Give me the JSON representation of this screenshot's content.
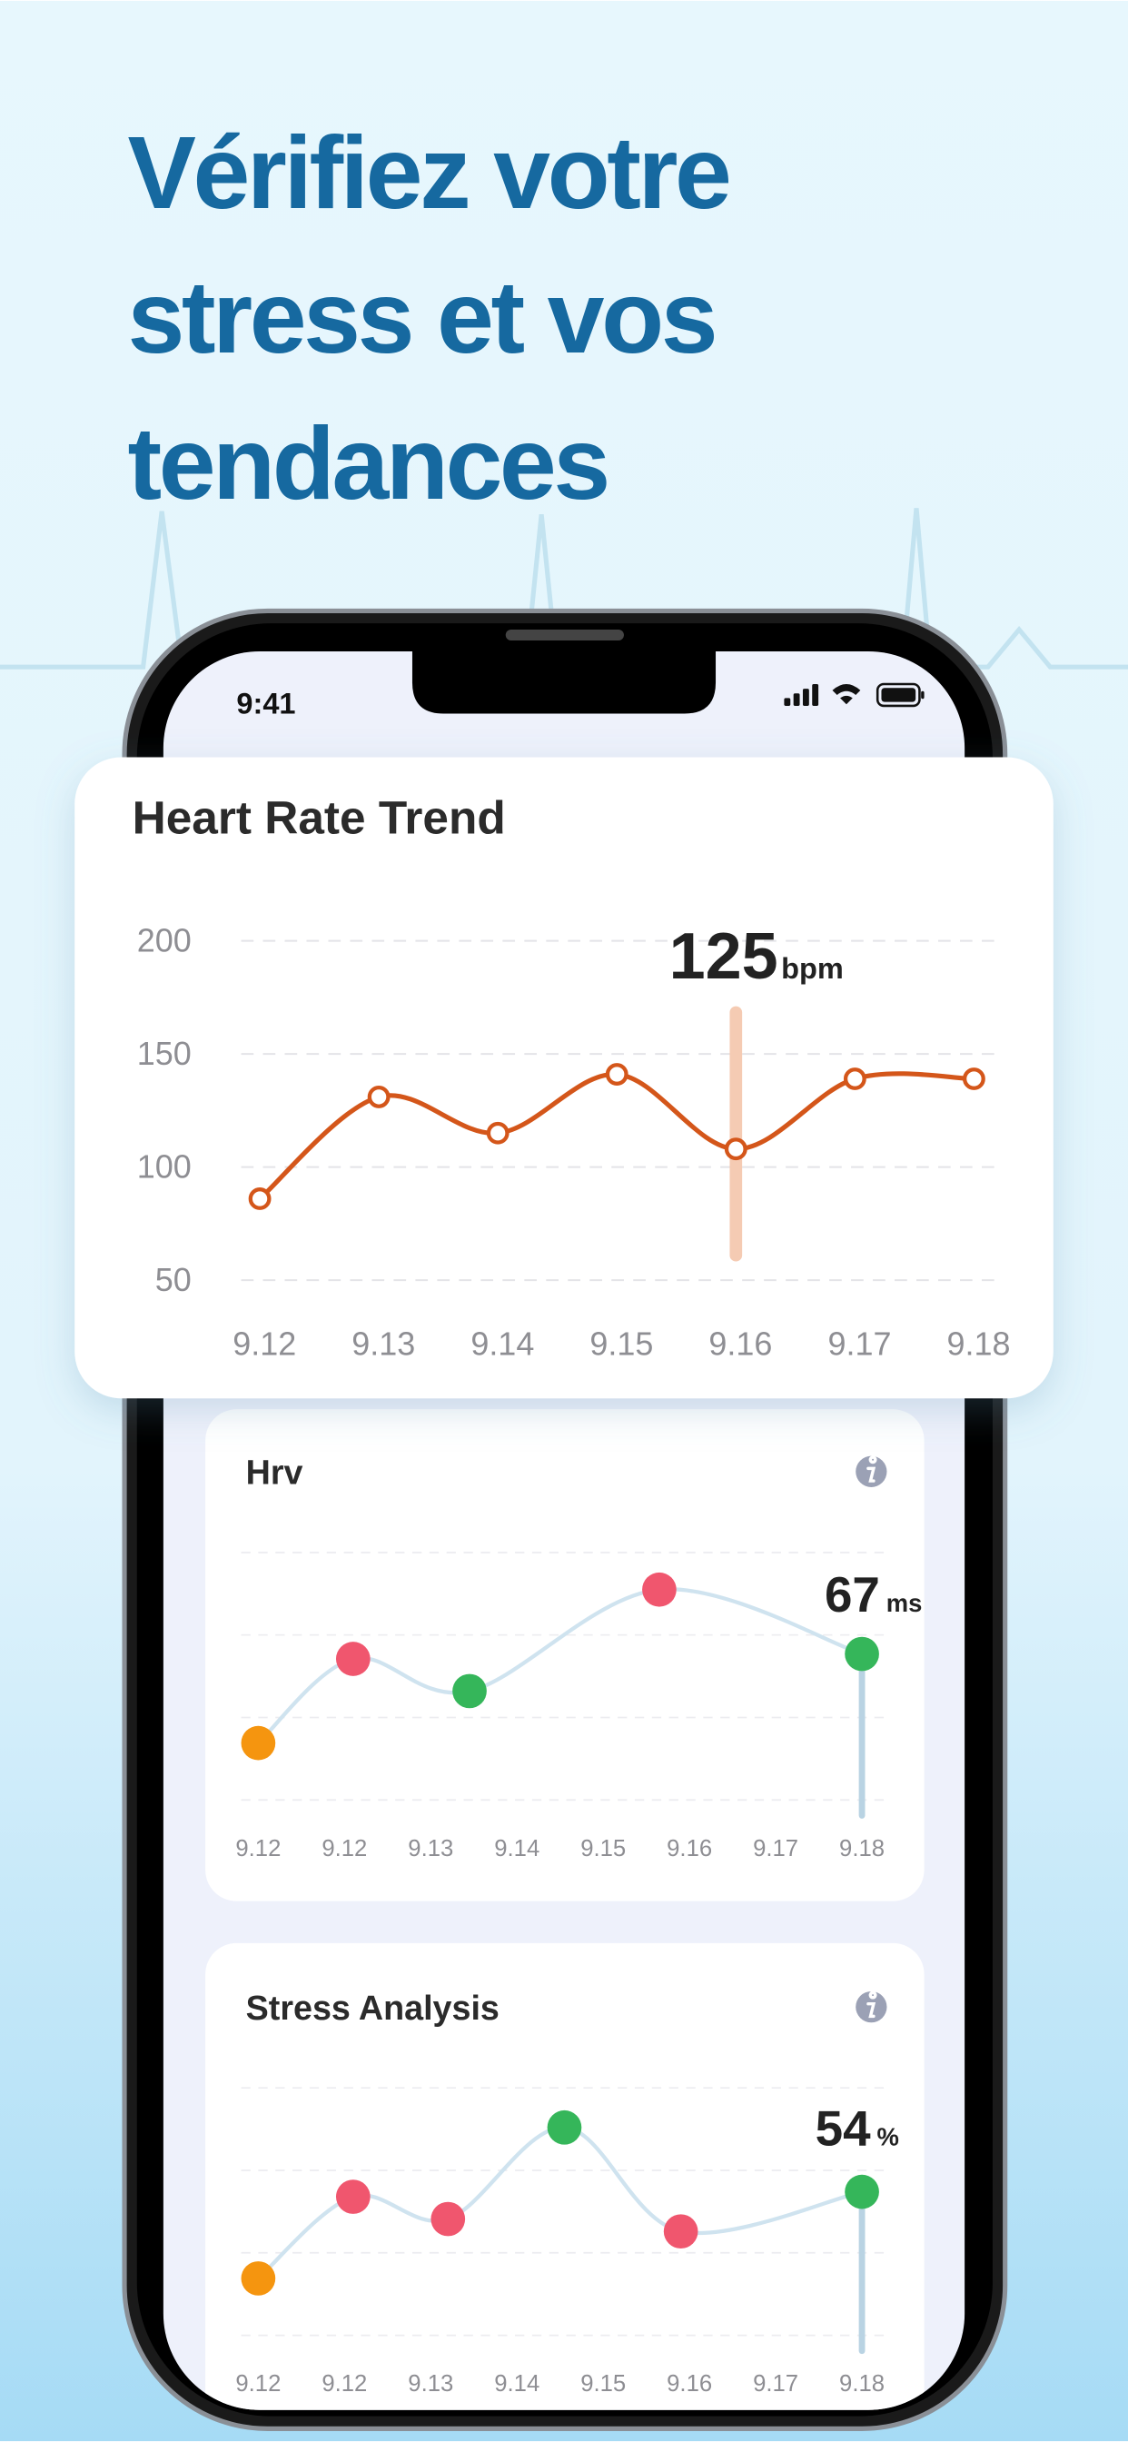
{
  "headline": [
    "Vérifiez votre",
    "stress et vos",
    "tendances"
  ],
  "status_bar": {
    "time": "9:41"
  },
  "chart_data": [
    {
      "type": "line",
      "title": "Heart Rate Trend",
      "categories": [
        "9.12",
        "9.13",
        "9.14",
        "9.15",
        "9.16",
        "9.17",
        "9.18"
      ],
      "values": [
        86,
        131,
        115,
        141,
        108,
        139,
        139
      ],
      "color": "#d4561a",
      "ylim": [
        50,
        200
      ],
      "yticks": [
        50,
        100,
        150,
        200
      ],
      "grid": true,
      "highlight": {
        "value": 125,
        "unit": "bpm"
      }
    },
    {
      "type": "scatter",
      "title": "Hrv",
      "categories": [
        "9.12",
        "9.12",
        "9.13",
        "9.14",
        "9.15",
        "9.16",
        "9.17",
        "9.18"
      ],
      "x": [
        0,
        1.1,
        2.45,
        4.65,
        7
      ],
      "values": [
        23,
        57,
        44,
        85,
        59
      ],
      "colors": [
        "#f5950f",
        "#f0566e",
        "#35b65a",
        "#f0566e",
        "#35b65a"
      ],
      "line_color": "#cfe3ef",
      "xlim": [
        0,
        7
      ],
      "ylim": [
        0,
        100
      ],
      "highlight": {
        "value": 67,
        "unit": "ms"
      }
    },
    {
      "type": "scatter",
      "title": "Stress Analysis",
      "categories": [
        "9.12",
        "9.12",
        "9.13",
        "9.14",
        "9.15",
        "9.16",
        "9.17",
        "9.18"
      ],
      "x": [
        0,
        1.1,
        2.2,
        3.55,
        4.9,
        7
      ],
      "values": [
        23,
        56,
        47,
        84,
        42,
        58
      ],
      "colors": [
        "#f5950f",
        "#f0566e",
        "#f0566e",
        "#35b65a",
        "#f0566e",
        "#35b65a"
      ],
      "line_color": "#cfe3ef",
      "xlim": [
        0,
        7
      ],
      "ylim": [
        0,
        100
      ],
      "highlight": {
        "value": 54,
        "unit": "%"
      }
    }
  ]
}
